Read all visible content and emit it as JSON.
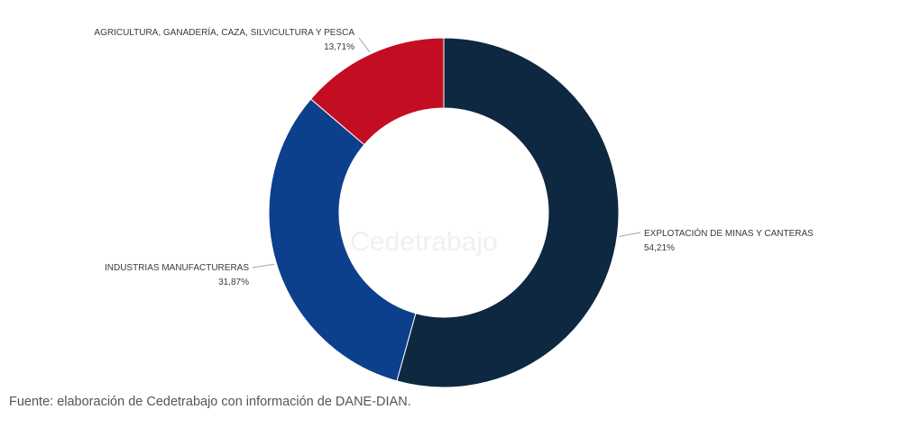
{
  "chart_data": {
    "type": "pie",
    "variant": "donut",
    "categories": [
      "EXPLOTACIÓN DE MINAS Y CANTERAS",
      "INDUSTRIAS MANUFACTURERAS",
      "AGRICULTURA, GANADERÍA, CAZA, SILVICULTURA Y PESCA"
    ],
    "values": [
      54.21,
      31.87,
      13.71
    ],
    "value_labels": [
      "54,21%",
      "31,87%",
      "13,71%"
    ],
    "colors": [
      "#0d2840",
      "#0c3f8c",
      "#c20d23"
    ],
    "legend": "none",
    "watermark": "Cedetrabajo"
  },
  "source_note": "Fuente: elaboración de Cedetrabajo con información de DANE-DIAN."
}
